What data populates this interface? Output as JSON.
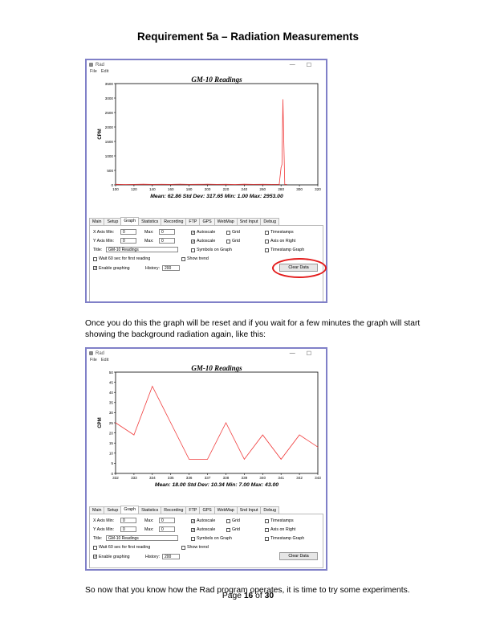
{
  "document": {
    "title": "Requirement 5a – Radiation Measurements",
    "paragraph1": "Once you do this the graph will be reset and if you wait for a few minutes the graph will start showing the background radiation again, like this:",
    "paragraph2": "So now that you know how the Rad program operates, it is time to try some experiments.",
    "footer_prefix": "Page ",
    "footer_page": "16",
    "footer_mid": " of ",
    "footer_total": "30"
  },
  "window": {
    "title": "Rad",
    "menu": [
      "File",
      "Edit"
    ],
    "minimize": "—",
    "maximize": "☐",
    "tabs": [
      "Main",
      "Setup",
      "Graph",
      "Statistics",
      "Recording",
      "FTP",
      "GPS",
      "WebMap",
      "Snd Input",
      "Debug"
    ],
    "active_tab": "Graph",
    "controls": {
      "x_axis_min_label": "X Axis Min:",
      "x_axis_min_value": "0",
      "x_max_label": "Max:",
      "x_max_value": "0",
      "y_axis_min_label": "Y Axis Min:",
      "y_axis_min_value": "0",
      "y_max_label": "Max:",
      "y_max_value": "0",
      "title_label": "Title:",
      "title_value": "GM-10 Readings",
      "autoscale_x": "Autoscale",
      "autoscale_y": "Autoscale",
      "grid_x": "Grid",
      "grid_y": "Grid",
      "symbols_on_graph": "Symbols on Graph",
      "timestamps": "Timestamps",
      "axis_on_right": "Axis on Right",
      "timestamp_graph": "Timestamp Graph",
      "wait_60": "Wait 60 sec for first reading",
      "show_trend": "Show trend",
      "enable_graphing": "Enable graphing",
      "history_label": "History:",
      "history_value": "200",
      "clear_data": "Clear Data",
      "checked": "✓"
    }
  },
  "colors": {
    "line": "#f03c3c",
    "window_border": "#8080c8",
    "highlight": "#e31b1b"
  },
  "chart_data": [
    {
      "type": "line",
      "title": "GM-10 Readings",
      "xlabel": "",
      "ylabel": "CPM",
      "xlim": [
        100,
        320
      ],
      "ylim": [
        0,
        3500
      ],
      "xticks": [
        100,
        120,
        140,
        160,
        180,
        200,
        220,
        240,
        260,
        280,
        300,
        320
      ],
      "yticks": [
        0,
        500,
        1000,
        1500,
        2000,
        2500,
        3000,
        3500
      ],
      "stats": "Mean: 62.86   Std Dev: 317.65   Min: 1.00   Max: 2953.00",
      "x": [
        100,
        110,
        120,
        130,
        140,
        150,
        160,
        170,
        180,
        190,
        200,
        210,
        220,
        230,
        240,
        250,
        260,
        270,
        278,
        280,
        281,
        282,
        283,
        284,
        285,
        286
      ],
      "y": [
        20,
        15,
        18,
        22,
        17,
        20,
        18,
        25,
        16,
        20,
        22,
        18,
        20,
        15,
        22,
        18,
        20,
        18,
        20,
        600,
        700,
        2953,
        1500,
        20,
        15,
        18
      ]
    },
    {
      "type": "line",
      "title": "GM-10 Readings",
      "xlabel": "",
      "ylabel": "CPM",
      "xlim": [
        332,
        343
      ],
      "ylim": [
        0,
        50
      ],
      "xticks": [
        332,
        333,
        334,
        335,
        336,
        337,
        338,
        339,
        340,
        341,
        342,
        343
      ],
      "yticks": [
        0,
        5,
        10,
        15,
        20,
        25,
        30,
        35,
        40,
        45,
        50
      ],
      "stats": "Mean: 18.00   Std Dev: 10.34   Min: 7.00   Max: 43.00",
      "x": [
        332,
        333,
        334,
        335,
        336,
        337,
        338,
        339,
        340,
        341,
        342,
        343
      ],
      "y": [
        25,
        19,
        43,
        25,
        7,
        7,
        25,
        7,
        19,
        7,
        19,
        13
      ]
    }
  ]
}
